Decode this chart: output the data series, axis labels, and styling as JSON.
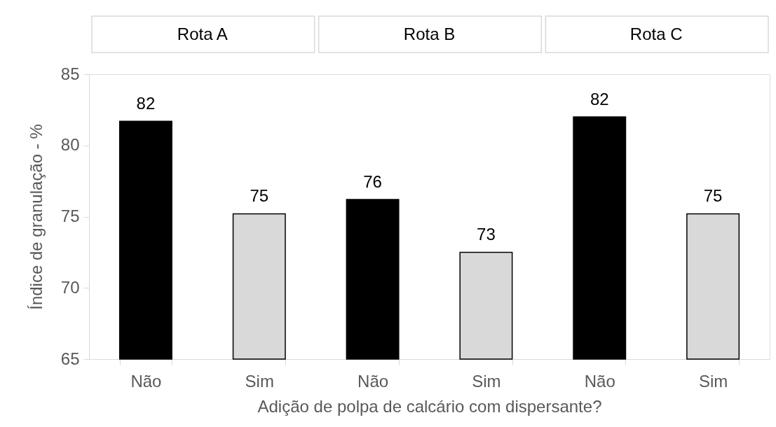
{
  "chart_data": {
    "type": "bar",
    "xlabel": "Adição de polpa de calcário com dispersante?",
    "ylabel": "Índice de granulação - %",
    "categories": [
      "Não",
      "Sim",
      "Não",
      "Sim",
      "Não",
      "Sim"
    ],
    "values": [
      81.7,
      75.2,
      76.2,
      72.5,
      82.0,
      75.2
    ],
    "value_labels": [
      "82",
      "75",
      "76",
      "73",
      "82",
      "75"
    ],
    "colors": [
      "#000000",
      "#d9d9d9",
      "#000000",
      "#d9d9d9",
      "#000000",
      "#d9d9d9"
    ],
    "ylim": [
      65,
      85
    ],
    "yticks": [
      65,
      70,
      75,
      80,
      85
    ],
    "annotations": [
      "Rota A",
      "Rota B",
      "Rota C"
    ],
    "grid": false
  }
}
